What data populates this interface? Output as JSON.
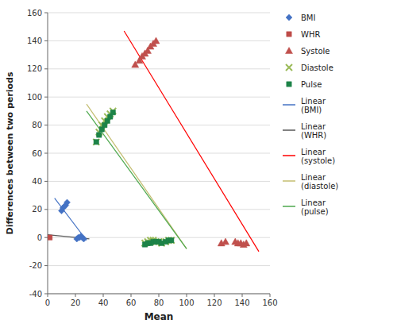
{
  "chart_data": {
    "type": "scatter",
    "xlabel": "Mean",
    "ylabel": "Differences between two periods",
    "xlim": [
      0,
      160
    ],
    "ylim": [
      -40,
      160
    ],
    "xticks": [
      0,
      20,
      40,
      60,
      80,
      100,
      120,
      140,
      160
    ],
    "yticks": [
      -40,
      -20,
      0,
      20,
      40,
      60,
      80,
      100,
      120,
      140,
      160
    ],
    "grid": "y",
    "series": [
      {
        "name": "BMI",
        "type": "scatter",
        "marker": "diamond",
        "color": "#4472C4",
        "x": [
          10,
          11,
          12,
          13,
          14,
          21,
          22,
          23,
          24,
          25,
          26
        ],
        "values": [
          19,
          21,
          22,
          23,
          25,
          -1,
          0,
          0,
          1,
          0,
          -1
        ]
      },
      {
        "name": "WHR",
        "type": "scatter",
        "marker": "square",
        "color": "#BE4B48",
        "x": [
          1.5
        ],
        "values": [
          0
        ]
      },
      {
        "name": "Systole",
        "type": "scatter",
        "marker": "triangle",
        "color": "#C0504D",
        "x": [
          63,
          66,
          68,
          70,
          72,
          74,
          76,
          78,
          125,
          128,
          135,
          137,
          139,
          141,
          143
        ],
        "values": [
          123,
          126,
          129,
          131,
          133,
          136,
          138,
          140,
          -4,
          -3,
          -3,
          -4,
          -4,
          -5,
          -4
        ]
      },
      {
        "name": "Diastole",
        "type": "scatter",
        "marker": "x",
        "color": "#9BBB59",
        "x": [
          35,
          37,
          39,
          41,
          43,
          45,
          47,
          70,
          72,
          74,
          76,
          78,
          80,
          82,
          85,
          87,
          89
        ],
        "values": [
          68,
          75,
          80,
          83,
          86,
          88,
          90,
          -4,
          -3,
          -2,
          -2,
          -3,
          -3,
          -4,
          -3,
          -2,
          -2
        ]
      },
      {
        "name": "Pulse",
        "type": "scatter",
        "marker": "square",
        "color": "#1D8348",
        "x": [
          35,
          37,
          39,
          41,
          43,
          45,
          47,
          70,
          72,
          74,
          76,
          78,
          80,
          82,
          85,
          87,
          89
        ],
        "values": [
          68,
          73,
          77,
          80,
          83,
          86,
          89,
          -5,
          -4,
          -4,
          -3,
          -3,
          -3,
          -4,
          -3,
          -2,
          -2
        ]
      },
      {
        "name": "Linear\n(BMI)",
        "type": "line",
        "color": "#4472C4",
        "x": [
          5,
          28
        ],
        "values": [
          28,
          -2
        ]
      },
      {
        "name": "Linear\n(WHR)",
        "type": "line",
        "color": "#595959",
        "x": [
          0,
          30
        ],
        "values": [
          2,
          -1
        ]
      },
      {
        "name": "Linear\n(systole)",
        "type": "line",
        "color": "#FF0000",
        "x": [
          55,
          152
        ],
        "values": [
          147,
          -10
        ]
      },
      {
        "name": "Linear\n(diastole)",
        "type": "line",
        "color": "#C4BE71",
        "x": [
          28,
          100
        ],
        "values": [
          95,
          -8
        ]
      },
      {
        "name": "Linear\n(pulse)",
        "type": "line",
        "color": "#4EA94E",
        "x": [
          28,
          100
        ],
        "values": [
          90,
          -8
        ]
      }
    ]
  }
}
